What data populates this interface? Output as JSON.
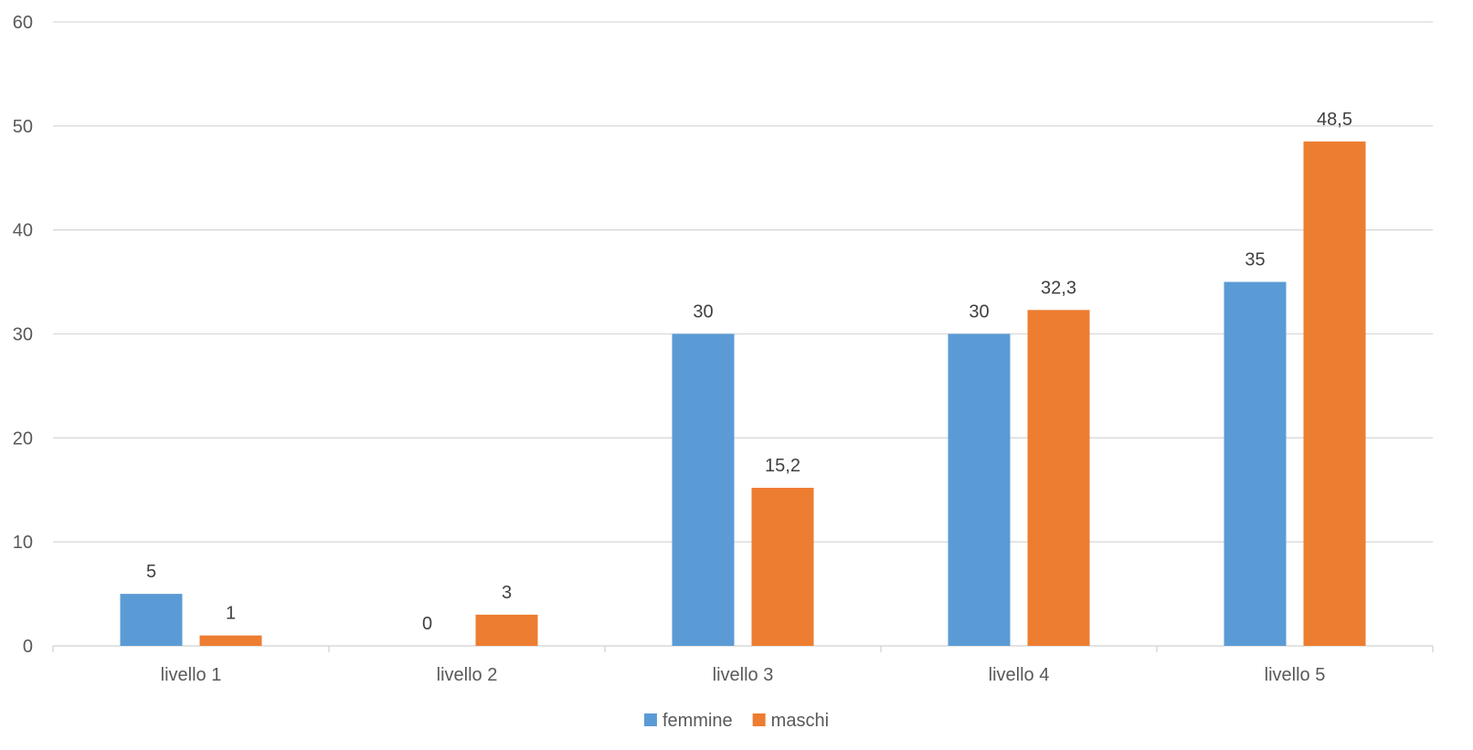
{
  "chart_data": {
    "type": "bar",
    "categories": [
      "livello 1",
      "livello 2",
      "livello 3",
      "livello 4",
      "livello 5"
    ],
    "series": [
      {
        "name": "femmine",
        "color": "#5B9BD5",
        "values": [
          5,
          0,
          30,
          30,
          35
        ],
        "labels": [
          "5",
          "0",
          "30",
          "30",
          "35"
        ]
      },
      {
        "name": "maschi",
        "color": "#ED7D31",
        "values": [
          1,
          3,
          15.2,
          32.3,
          48.5
        ],
        "labels": [
          "1",
          "3",
          "15,2",
          "32,3",
          "48,5"
        ]
      }
    ],
    "y_ticks": [
      "0",
      "10",
      "20",
      "30",
      "40",
      "50",
      "60"
    ],
    "ylim": [
      0,
      60
    ],
    "grid": true,
    "legend_position": "bottom",
    "gridline_color": "#D9D9D9"
  }
}
